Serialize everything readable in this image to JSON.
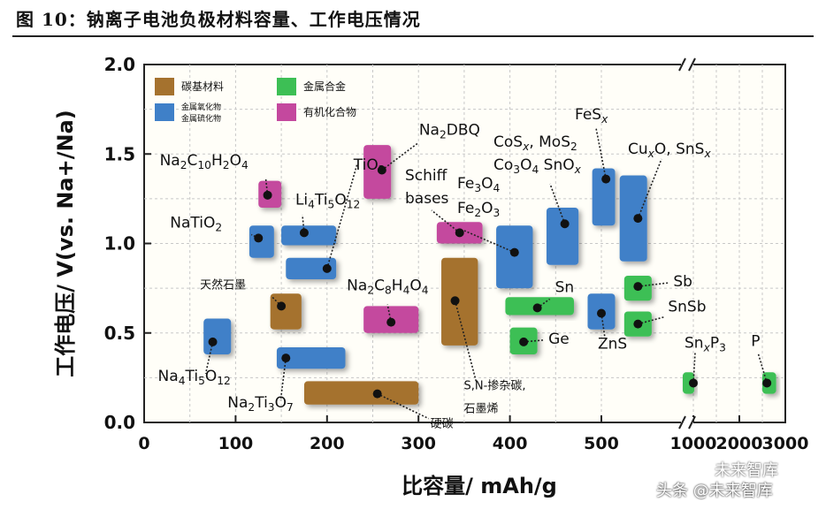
{
  "caption": "图 10：钠离子电池负极材料容量、工作电压情况",
  "watermark": {
    "top": "未来智库",
    "bottom": "头条 @未来智库"
  },
  "chart_data": {
    "type": "scatter",
    "title": "钠离子电池负极材料容量、工作电压情况",
    "xlabel": "比容量/ mAh/g",
    "ylabel": "工作电压/ V(vs. Na+/Na)",
    "xlim": [
      0,
      3000
    ],
    "ylim": [
      0.0,
      2.0
    ],
    "x_ticks": [
      "0",
      "100",
      "200",
      "300",
      "400",
      "500",
      "1000",
      "2000",
      "3000"
    ],
    "y_ticks": [
      "0.0",
      "0.5",
      "1.0",
      "1.5",
      "2.0"
    ],
    "axis_break": "x between 550 and 1000",
    "grid": true,
    "colors": {
      "carbon": "#A5722E",
      "oxide": "#3F80C8",
      "alloy": "#3DBF55",
      "organic": "#C4489E"
    },
    "legend": [
      {
        "key": "carbon",
        "label": "碳基材料"
      },
      {
        "key": "alloy",
        "label": "金属合金"
      },
      {
        "key": "oxide",
        "label": "金属氧化物\n金属硫化物"
      },
      {
        "key": "organic",
        "label": "有机化合物"
      }
    ],
    "materials": [
      {
        "label": "Na2C10H2O4",
        "cat": "organic",
        "x": 135,
        "y": 1.27,
        "x_range": [
          125,
          150
        ],
        "y_range": [
          1.2,
          1.35
        ]
      },
      {
        "label": "Na2DBQ",
        "cat": "organic",
        "x": 260,
        "y": 1.41,
        "x_range": [
          240,
          270
        ],
        "y_range": [
          1.25,
          1.55
        ]
      },
      {
        "label": "NaTiO2",
        "cat": "oxide",
        "x": 125,
        "y": 1.03,
        "x_range": [
          115,
          142
        ],
        "y_range": [
          0.92,
          1.1
        ]
      },
      {
        "label": "Li4Ti5O12",
        "cat": "oxide",
        "x": 175,
        "y": 1.06,
        "x_range": [
          150,
          210
        ],
        "y_range": [
          0.99,
          1.1
        ]
      },
      {
        "label": "TiO2",
        "cat": "oxide",
        "x": 200,
        "y": 0.86,
        "x_range": [
          155,
          210
        ],
        "y_range": [
          0.8,
          0.92
        ]
      },
      {
        "label": "天然石墨",
        "cat": "carbon",
        "x": 150,
        "y": 0.65,
        "x_range": [
          138,
          172
        ],
        "y_range": [
          0.52,
          0.72
        ]
      },
      {
        "label": "Na4Ti5O12",
        "cat": "oxide",
        "x": 75,
        "y": 0.45,
        "x_range": [
          65,
          95
        ],
        "y_range": [
          0.38,
          0.58
        ]
      },
      {
        "label": "Na2Ti3O7",
        "cat": "oxide",
        "x": 155,
        "y": 0.36,
        "x_range": [
          145,
          220
        ],
        "y_range": [
          0.3,
          0.42
        ]
      },
      {
        "label": "Na2C8H4O4",
        "cat": "organic",
        "x": 270,
        "y": 0.56,
        "x_range": [
          240,
          300
        ],
        "y_range": [
          0.5,
          0.65
        ]
      },
      {
        "label": "硬碳",
        "cat": "carbon",
        "x": 255,
        "y": 0.16,
        "x_range": [
          175,
          300
        ],
        "y_range": [
          0.1,
          0.23
        ]
      },
      {
        "label": "Schiff bases",
        "cat": "organic",
        "x": 345,
        "y": 1.06,
        "x_range": [
          320,
          370
        ],
        "y_range": [
          1.0,
          1.12
        ]
      },
      {
        "label": "S,N-掺杂碳,石墨烯",
        "cat": "carbon",
        "x": 340,
        "y": 0.68,
        "x_range": [
          325,
          365
        ],
        "y_range": [
          0.43,
          0.92
        ]
      },
      {
        "label": "Fe3O4 Fe2O3",
        "cat": "oxide",
        "x": 405,
        "y": 0.95,
        "x_range": [
          385,
          425
        ],
        "y_range": [
          0.75,
          1.1
        ]
      },
      {
        "label": "CoSx, MoS2 Co3O4 SnOx",
        "cat": "oxide",
        "x": 460,
        "y": 1.11,
        "x_range": [
          440,
          475
        ],
        "y_range": [
          0.88,
          1.2
        ]
      },
      {
        "label": "FeSx",
        "cat": "oxide",
        "x": 505,
        "y": 1.36,
        "x_range": [
          490,
          515
        ],
        "y_range": [
          1.1,
          1.42
        ]
      },
      {
        "label": "CuxO, SnSx",
        "cat": "oxide",
        "x": 540,
        "y": 1.14,
        "x_range": [
          520,
          550
        ],
        "y_range": [
          0.9,
          1.38
        ]
      },
      {
        "label": "Sn",
        "cat": "alloy",
        "x": 430,
        "y": 0.64,
        "x_range": [
          395,
          470
        ],
        "y_range": [
          0.6,
          0.7
        ]
      },
      {
        "label": "Ge",
        "cat": "alloy",
        "x": 415,
        "y": 0.45,
        "x_range": [
          400,
          430
        ],
        "y_range": [
          0.38,
          0.53
        ]
      },
      {
        "label": "ZnS",
        "cat": "oxide",
        "x": 500,
        "y": 0.61,
        "x_range": [
          485,
          515
        ],
        "y_range": [
          0.52,
          0.72
        ]
      },
      {
        "label": "Sb",
        "cat": "alloy",
        "x": 540,
        "y": 0.76,
        "x_range": [
          525,
          555
        ],
        "y_range": [
          0.68,
          0.82
        ]
      },
      {
        "label": "SnSb",
        "cat": "alloy",
        "x": 540,
        "y": 0.55,
        "x_range": [
          525,
          555
        ],
        "y_range": [
          0.48,
          0.62
        ]
      },
      {
        "label": "SnxP3",
        "cat": "alloy",
        "x": 1000,
        "y": 0.22,
        "x_range": [
          950,
          1020
        ],
        "y_range": [
          0.16,
          0.28
        ]
      },
      {
        "label": "P",
        "cat": "alloy",
        "x": 2600,
        "y": 0.22,
        "x_range": [
          2500,
          2800
        ],
        "y_range": [
          0.16,
          0.28
        ]
      }
    ]
  }
}
